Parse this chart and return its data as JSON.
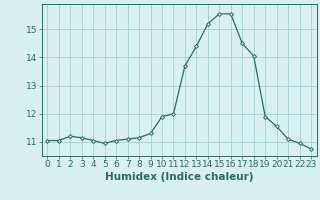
{
  "x": [
    0,
    1,
    2,
    3,
    4,
    5,
    6,
    7,
    8,
    9,
    10,
    11,
    12,
    13,
    14,
    15,
    16,
    17,
    18,
    19,
    20,
    21,
    22,
    23
  ],
  "y": [
    11.05,
    11.05,
    11.2,
    11.15,
    11.05,
    10.95,
    11.05,
    11.1,
    11.15,
    11.3,
    11.9,
    12.0,
    13.7,
    14.4,
    15.2,
    15.55,
    15.55,
    14.5,
    14.05,
    11.9,
    11.55,
    11.1,
    10.95,
    10.75
  ],
  "line_color": "#2e6b5e",
  "marker": "D",
  "marker_size": 2.0,
  "bg_color": "#d8f0f0",
  "grid_color": "#a8cece",
  "xlabel": "Humidex (Indice chaleur)",
  "xlim": [
    -0.5,
    23.5
  ],
  "ylim": [
    10.5,
    15.9
  ],
  "yticks": [
    11,
    12,
    13,
    14,
    15
  ],
  "xticks": [
    0,
    1,
    2,
    3,
    4,
    5,
    6,
    7,
    8,
    9,
    10,
    11,
    12,
    13,
    14,
    15,
    16,
    17,
    18,
    19,
    20,
    21,
    22,
    23
  ],
  "xlabel_fontsize": 7.5,
  "tick_fontsize": 6.5,
  "label_color": "#2e6b5e"
}
